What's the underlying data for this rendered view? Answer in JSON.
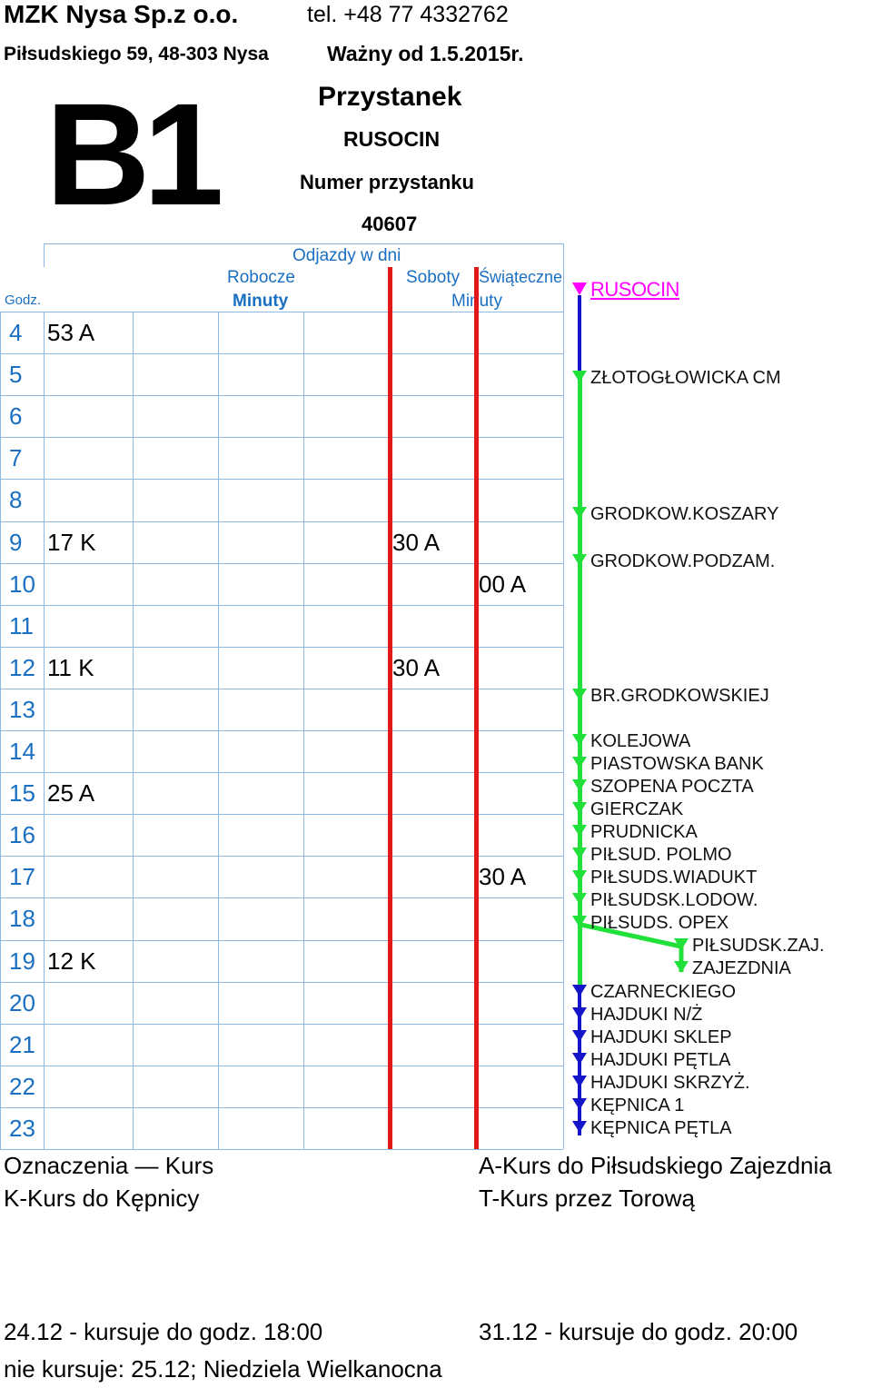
{
  "header": {
    "company": "MZK Nysa Sp.z o.o.",
    "phone": "tel. +48 77 4332762",
    "address": "Piłsudskiego 59, 48-303 Nysa",
    "valid_from": "Ważny od 1.5.2015r.",
    "line": "B1",
    "stop_label": "Przystanek",
    "stop_name": "RUSOCIN",
    "stop_number_label": "Numer przystanku",
    "stop_number": "40607"
  },
  "table": {
    "departures_label": "Odjazdy w dni",
    "weekdays_label": "Robocze",
    "saturdays_label": "Soboty",
    "holidays_label": "Świąteczne",
    "hour_col_label": "Godz.",
    "minutes_label_weekdays": "Minuty",
    "minutes_label_weekend": "Minuty",
    "rows": [
      {
        "hour": "4",
        "weekday": "53 A",
        "saturday": "",
        "holiday": ""
      },
      {
        "hour": "5",
        "weekday": "",
        "saturday": "",
        "holiday": ""
      },
      {
        "hour": "6",
        "weekday": "",
        "saturday": "",
        "holiday": ""
      },
      {
        "hour": "7",
        "weekday": "",
        "saturday": "",
        "holiday": ""
      },
      {
        "hour": "8",
        "weekday": "",
        "saturday": "",
        "holiday": ""
      },
      {
        "hour": "9",
        "weekday": "17 K",
        "saturday": "30 A",
        "holiday": ""
      },
      {
        "hour": "10",
        "weekday": "",
        "saturday": "",
        "holiday": "00 A"
      },
      {
        "hour": "11",
        "weekday": "",
        "saturday": "",
        "holiday": ""
      },
      {
        "hour": "12",
        "weekday": "11 K",
        "saturday": "30 A",
        "holiday": ""
      },
      {
        "hour": "13",
        "weekday": "",
        "saturday": "",
        "holiday": ""
      },
      {
        "hour": "14",
        "weekday": "",
        "saturday": "",
        "holiday": ""
      },
      {
        "hour": "15",
        "weekday": "25 A",
        "saturday": "",
        "holiday": ""
      },
      {
        "hour": "16",
        "weekday": "",
        "saturday": "",
        "holiday": ""
      },
      {
        "hour": "17",
        "weekday": "",
        "saturday": "",
        "holiday": "30 A"
      },
      {
        "hour": "18",
        "weekday": "",
        "saturday": "",
        "holiday": ""
      },
      {
        "hour": "19",
        "weekday": "12 K",
        "saturday": "",
        "holiday": ""
      },
      {
        "hour": "20",
        "weekday": "",
        "saturday": "",
        "holiday": ""
      },
      {
        "hour": "21",
        "weekday": "",
        "saturday": "",
        "holiday": ""
      },
      {
        "hour": "22",
        "weekday": "",
        "saturday": "",
        "holiday": ""
      },
      {
        "hour": "23",
        "weekday": "",
        "saturday": "",
        "holiday": ""
      }
    ]
  },
  "route": {
    "current_stop": "RUSOCIN",
    "stops": [
      "ZŁOTOGŁOWICKA CM",
      "GRODKOW.KOSZARY",
      "GRODKOW.PODZAM.",
      "BR.GRODKOWSKIEJ",
      "KOLEJOWA",
      "PIASTOWSKA BANK",
      "SZOPENA POCZTA",
      "GIERCZAK",
      "PRUDNICKA",
      "PIŁSUD. POLMO",
      "PIŁSUDS.WIADUKT",
      "PIŁSUDSK.LODOW.",
      "PIŁSUDS. OPEX",
      "PIŁSUDSK.ZAJ.",
      "ZAJEZDNIA",
      "CZARNECKIEGO",
      "HAJDUKI N/Ż",
      "HAJDUKI SKLEP",
      "HAJDUKI PĘTLA",
      "HAJDUKI SKRZYŻ.",
      "KĘPNICA 1",
      "KĘPNICA PĘTLA"
    ],
    "colors": {
      "current": "#ff00ff",
      "green": "#22e03a",
      "blue": "#1414c8",
      "red": "#e01818"
    }
  },
  "legend": {
    "title": "Oznaczenia",
    "kurs": "Kurs",
    "a": "A-Kurs do Piłsudskiego Zajezdnia",
    "k": "K-Kurs do Kępnicy",
    "t": "T-Kurs przez Torową"
  },
  "notes": {
    "dec24": "24.12 - kursuje do godz. 18:00",
    "dec31": "31.12 - kursuje do godz. 20:00",
    "not_running": "nie kursuje: 25.12; Niedziela Wielkanocna"
  }
}
